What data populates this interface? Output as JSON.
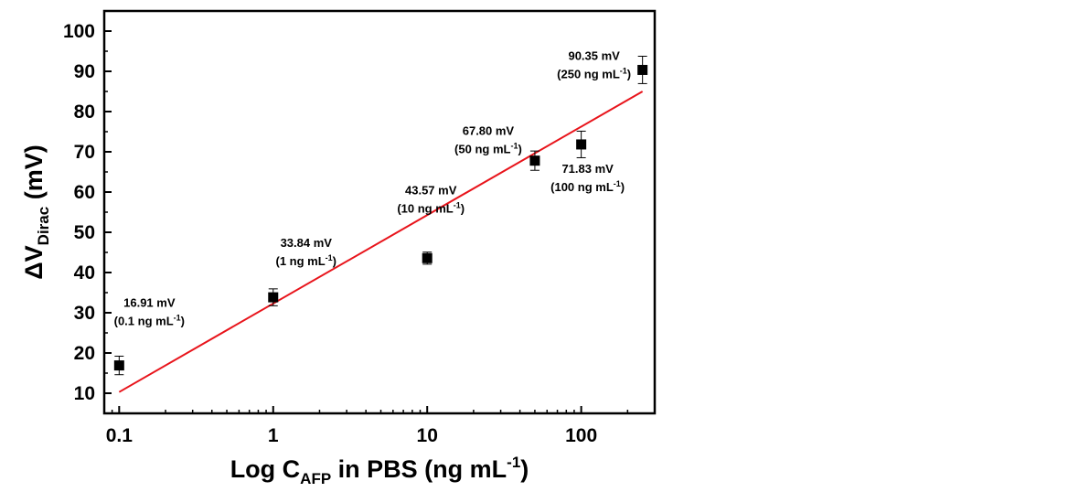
{
  "chart_data": {
    "type": "scatter",
    "xscale": "log",
    "xlim": [
      0.08,
      300
    ],
    "ylim": [
      5,
      105
    ],
    "xticks": [
      0.1,
      1,
      10,
      100
    ],
    "xtick_labels": [
      "0.1",
      "1",
      "10",
      "100"
    ],
    "yticks": [
      10,
      20,
      30,
      40,
      50,
      60,
      70,
      80,
      90,
      100
    ],
    "ytick_labels": [
      "10",
      "20",
      "30",
      "40",
      "50",
      "60",
      "70",
      "80",
      "90",
      "100"
    ],
    "xlabel": {
      "main": "Log C",
      "sub": "AFP",
      "rest": " in PBS (ng mL",
      "sup": "-1",
      "end": ")"
    },
    "ylabel": {
      "main": "ΔV",
      "sub": "Dirac",
      "rest": " (mV)"
    },
    "grid": false,
    "colors": {
      "points": "#000000",
      "fit": "#e8141b",
      "axis": "#000000"
    },
    "points": [
      {
        "x": 0.1,
        "y": 16.91,
        "err": 2.3,
        "label_value": "16.91 mV",
        "label_conc": "(0.1 ng mL",
        "label_sup": "-1",
        "label_end": ")"
      },
      {
        "x": 1,
        "y": 33.84,
        "err": 2.1,
        "label_value": "33.84 mV",
        "label_conc": "(1 ng mL",
        "label_sup": "-1",
        "label_end": ")"
      },
      {
        "x": 10,
        "y": 43.57,
        "err": 1.5,
        "label_value": "43.57 mV",
        "label_conc": "(10 ng mL",
        "label_sup": "-1",
        "label_end": ")"
      },
      {
        "x": 50,
        "y": 67.8,
        "err": 2.4,
        "label_value": "67.80 mV",
        "label_conc": "(50 ng mL",
        "label_sup": "-1",
        "label_end": ")"
      },
      {
        "x": 100,
        "y": 71.83,
        "err": 3.3,
        "label_value": "71.83 mV",
        "label_conc": "(100 ng mL",
        "label_sup": "-1",
        "label_end": ")"
      },
      {
        "x": 250,
        "y": 90.35,
        "err": 3.4,
        "label_value": "90.35 mV",
        "label_conc": "(250 ng mL",
        "label_sup": "-1",
        "label_end": ")"
      }
    ],
    "fit_line": {
      "x": [
        0.1,
        250
      ],
      "y": [
        10.3,
        85.0
      ]
    }
  }
}
